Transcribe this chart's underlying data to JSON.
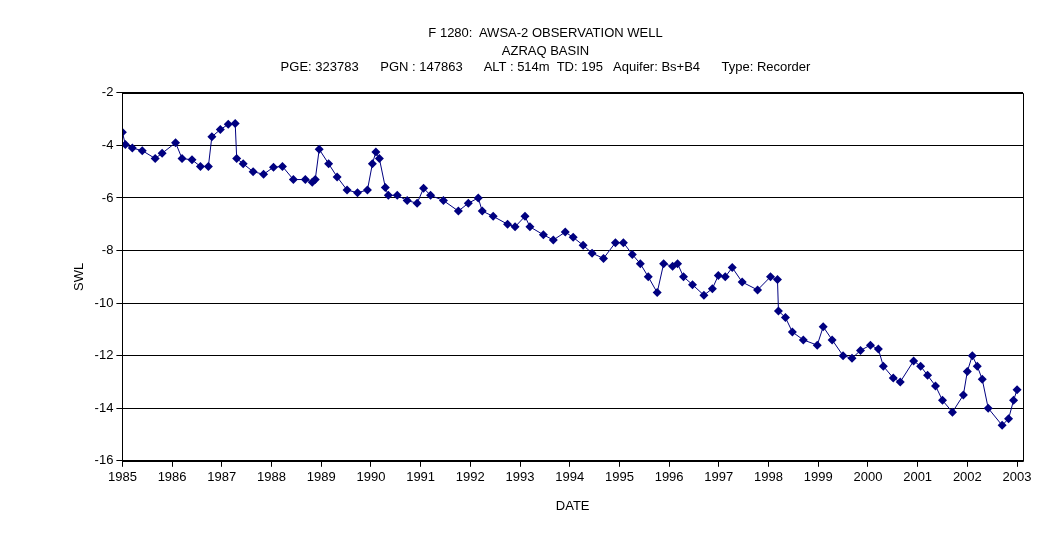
{
  "chart_data": {
    "type": "line",
    "title": "F 1280:  AWSA-2 OBSERVATION WELL",
    "subtitle": [
      "AZRAQ BASIN",
      "PGE: 323783      PGN : 147863      ALT : 514m  TD: 195   Aquifer: Bs+B4      Type: Recorder"
    ],
    "xlabel": "DATE",
    "ylabel": "SWL",
    "x": [
      1985.0,
      1985.06,
      1985.2,
      1985.4,
      1985.66,
      1985.8,
      1986.07,
      1986.2,
      1986.4,
      1986.57,
      1986.73,
      1986.8,
      1986.97,
      1987.13,
      1987.27,
      1987.3,
      1987.43,
      1987.63,
      1987.84,
      1988.04,
      1988.22,
      1988.44,
      1988.68,
      1988.82,
      1988.88,
      1988.96,
      1989.15,
      1989.32,
      1989.52,
      1989.73,
      1989.93,
      1990.03,
      1990.1,
      1990.17,
      1990.29,
      1990.35,
      1990.53,
      1990.73,
      1990.93,
      1991.06,
      1991.2,
      1991.46,
      1991.76,
      1991.96,
      1992.16,
      1992.24,
      1992.46,
      1992.75,
      1992.9,
      1993.1,
      1993.2,
      1993.47,
      1993.67,
      1993.91,
      1994.07,
      1994.27,
      1994.45,
      1994.68,
      1994.92,
      1995.08,
      1995.26,
      1995.42,
      1995.58,
      1995.76,
      1995.89,
      1996.07,
      1996.17,
      1996.29,
      1996.47,
      1996.7,
      1996.87,
      1996.99,
      1997.13,
      1997.27,
      1997.47,
      1997.78,
      1998.04,
      1998.18,
      1998.2,
      1998.34,
      1998.48,
      1998.7,
      1998.98,
      1999.1,
      1999.28,
      1999.5,
      1999.68,
      1999.85,
      2000.05,
      2000.21,
      2000.31,
      2000.51,
      2000.65,
      2000.92,
      2001.06,
      2001.2,
      2001.36,
      2001.5,
      2001.7,
      2001.92,
      2002.0,
      2002.1,
      2002.2,
      2002.3,
      2002.42,
      2002.7,
      2002.83,
      2002.93,
      2003.0
    ],
    "series": [
      {
        "color": "#000080",
        "values": [
          -3.5,
          -3.97,
          -4.1,
          -4.2,
          -4.5,
          -4.3,
          -3.9,
          -4.5,
          -4.55,
          -4.8,
          -4.8,
          -3.67,
          -3.4,
          -3.2,
          -3.17,
          -4.5,
          -4.7,
          -5.0,
          -5.1,
          -4.83,
          -4.8,
          -5.3,
          -5.3,
          -5.4,
          -5.3,
          -4.15,
          -4.7,
          -5.2,
          -5.7,
          -5.8,
          -5.7,
          -4.7,
          -4.25,
          -4.5,
          -5.6,
          -5.9,
          -5.9,
          -6.1,
          -6.2,
          -5.63,
          -5.9,
          -6.1,
          -6.5,
          -6.2,
          -6.0,
          -6.5,
          -6.7,
          -7.0,
          -7.1,
          -6.7,
          -7.1,
          -7.4,
          -7.6,
          -7.3,
          -7.5,
          -7.8,
          -8.1,
          -8.3,
          -7.7,
          -7.7,
          -8.15,
          -8.5,
          -9.0,
          -9.6,
          -8.5,
          -8.6,
          -8.5,
          -9.0,
          -9.3,
          -9.7,
          -9.45,
          -8.95,
          -9.0,
          -8.65,
          -9.2,
          -9.5,
          -9.0,
          -9.1,
          -10.3,
          -10.55,
          -11.1,
          -11.4,
          -11.6,
          -10.9,
          -11.4,
          -12.0,
          -12.1,
          -11.8,
          -11.6,
          -11.75,
          -12.4,
          -12.85,
          -13.0,
          -12.2,
          -12.4,
          -12.75,
          -13.15,
          -13.7,
          -14.15,
          -13.5,
          -12.6,
          -12.0,
          -12.4,
          -12.9,
          -14.0,
          -14.65,
          -14.4,
          -13.7,
          -13.3
        ]
      }
    ],
    "xlim": [
      1985,
      2003.12
    ],
    "xticks": [
      1985,
      1986,
      1987,
      1988,
      1989,
      1990,
      1991,
      1992,
      1993,
      1994,
      1995,
      1996,
      1997,
      1998,
      1999,
      2000,
      2001,
      2002,
      2003
    ],
    "ylim": [
      -16,
      -2
    ],
    "yticks": [
      -16,
      -14,
      -12,
      -10,
      -8,
      -6,
      -4,
      -2
    ],
    "grid": "y",
    "legend": false,
    "marker": "diamond",
    "line_style": "solid"
  }
}
